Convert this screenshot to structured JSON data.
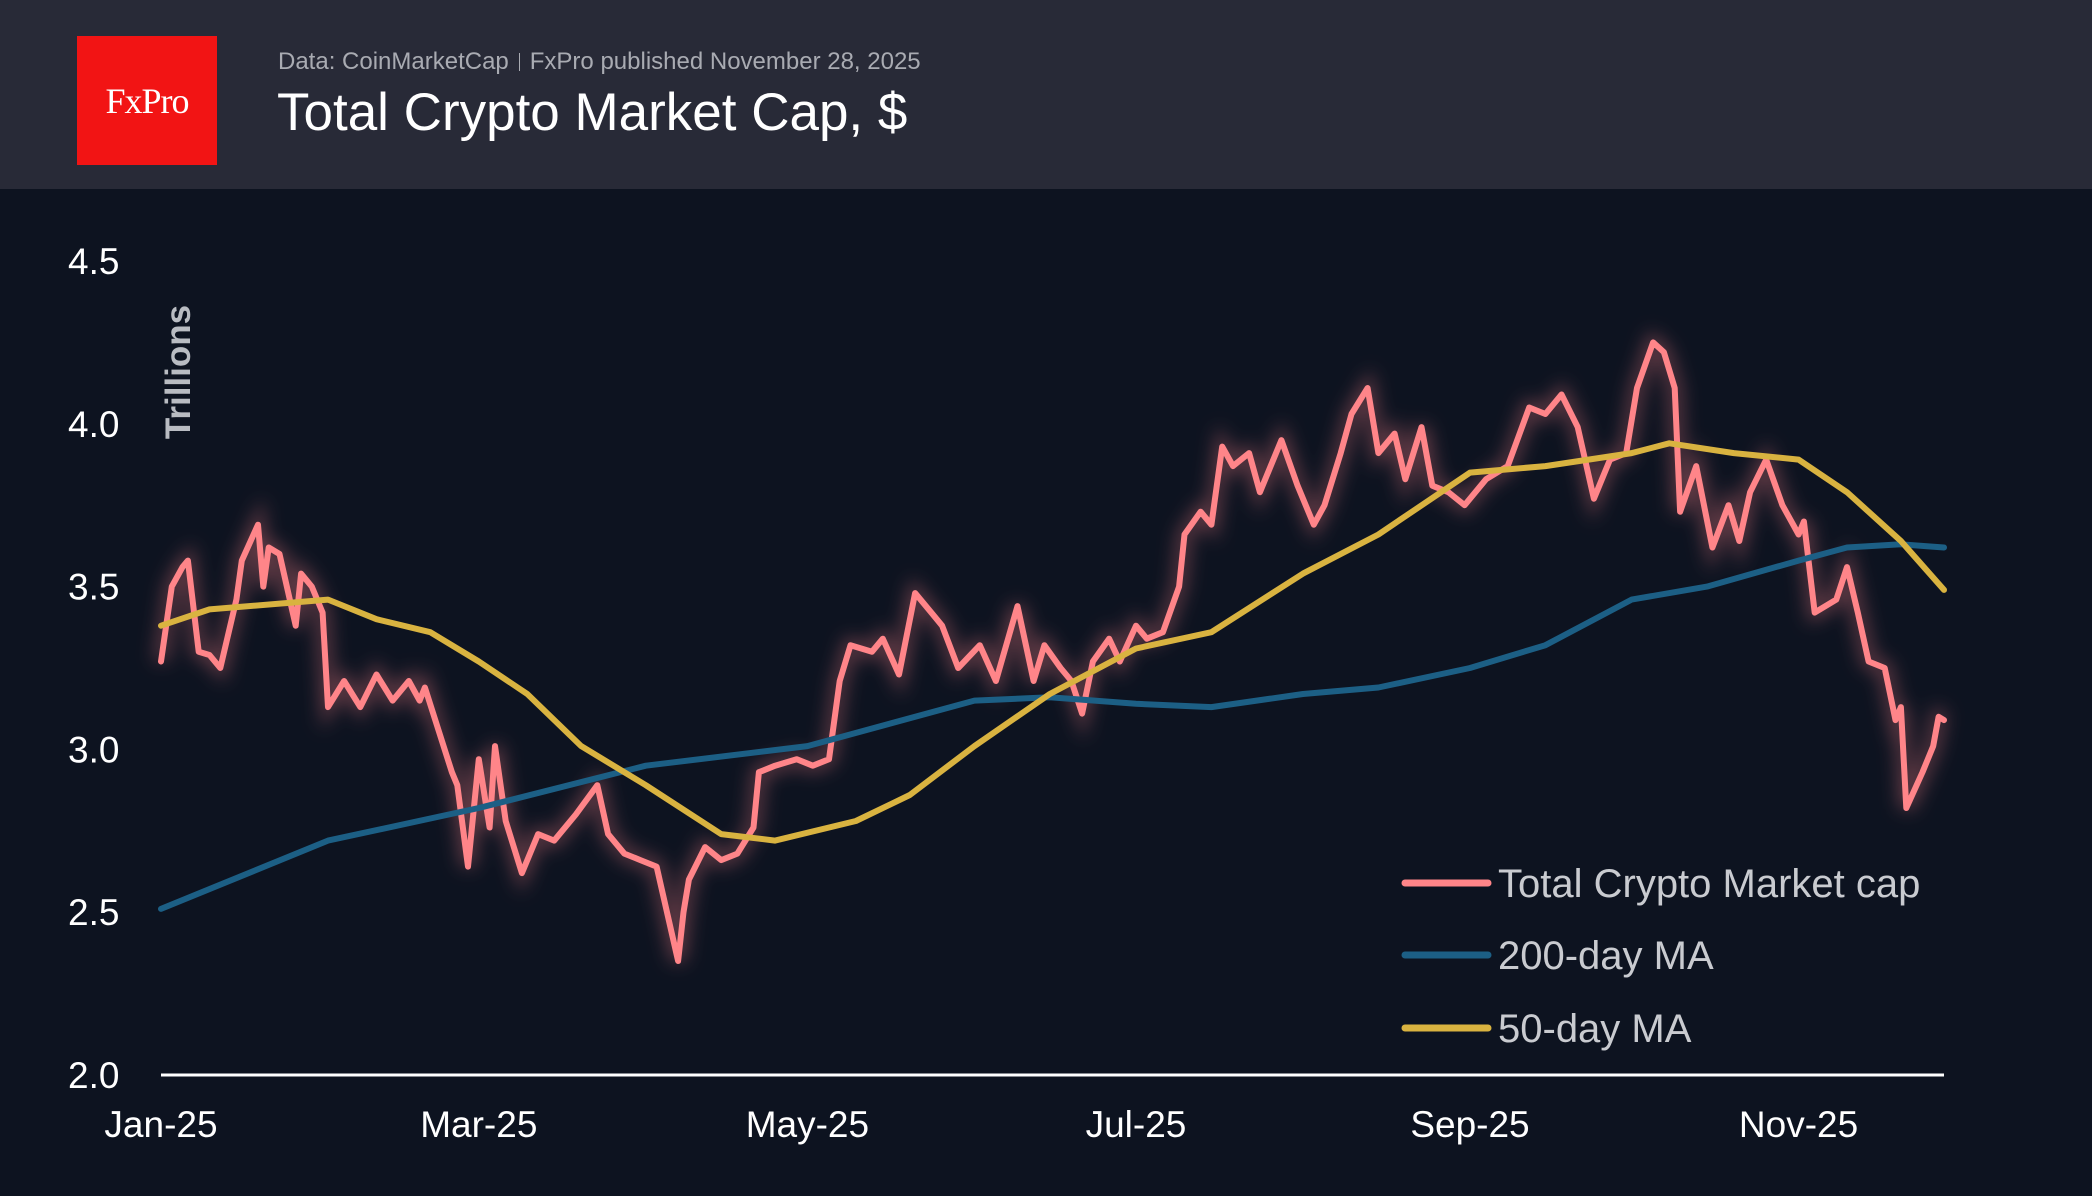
{
  "header": {
    "logo_text": "FxPro",
    "source": "Data: CoinMarketCap",
    "published": "FxPro published November 28, 2025",
    "title": "Total Crypto Market Cap, $"
  },
  "chart_data": {
    "type": "line",
    "title": "Total Crypto Market Cap, $",
    "ylabel": "Trillions",
    "xlabel": "",
    "ylim": [
      2.0,
      4.5
    ],
    "yticks": [
      "2.0",
      "2.5",
      "3.0",
      "3.5",
      "4.0",
      "4.5"
    ],
    "xlim": [
      "2025-01-01",
      "2025-11-28"
    ],
    "xticks": [
      {
        "date": "2025-01-01",
        "label": "Jan-25"
      },
      {
        "date": "2025-03-01",
        "label": "Mar-25"
      },
      {
        "date": "2025-05-01",
        "label": "May-25"
      },
      {
        "date": "2025-07-01",
        "label": "Jul-25"
      },
      {
        "date": "2025-09-01",
        "label": "Sep-25"
      },
      {
        "date": "2025-11-01",
        "label": "Nov-25"
      }
    ],
    "grid": false,
    "legend_position": "bottom-right",
    "series": [
      {
        "name": "Total Crypto Market cap",
        "color": "#ff8589",
        "glow": true,
        "points": [
          [
            "2025-01-01",
            3.27
          ],
          [
            "2025-01-03",
            3.5
          ],
          [
            "2025-01-05",
            3.56
          ],
          [
            "2025-01-06",
            3.58
          ],
          [
            "2025-01-08",
            3.3
          ],
          [
            "2025-01-10",
            3.29
          ],
          [
            "2025-01-12",
            3.25
          ],
          [
            "2025-01-15",
            3.46
          ],
          [
            "2025-01-16",
            3.58
          ],
          [
            "2025-01-19",
            3.69
          ],
          [
            "2025-01-20",
            3.5
          ],
          [
            "2025-01-21",
            3.62
          ],
          [
            "2025-01-23",
            3.6
          ],
          [
            "2025-01-26",
            3.38
          ],
          [
            "2025-01-27",
            3.54
          ],
          [
            "2025-01-29",
            3.5
          ],
          [
            "2025-01-31",
            3.42
          ],
          [
            "2025-02-01",
            3.13
          ],
          [
            "2025-02-04",
            3.21
          ],
          [
            "2025-02-07",
            3.13
          ],
          [
            "2025-02-10",
            3.23
          ],
          [
            "2025-02-13",
            3.15
          ],
          [
            "2025-02-16",
            3.21
          ],
          [
            "2025-02-18",
            3.15
          ],
          [
            "2025-02-19",
            3.19
          ],
          [
            "2025-02-24",
            2.93
          ],
          [
            "2025-02-25",
            2.89
          ],
          [
            "2025-02-27",
            2.64
          ],
          [
            "2025-03-01",
            2.97
          ],
          [
            "2025-03-03",
            2.76
          ],
          [
            "2025-03-04",
            3.01
          ],
          [
            "2025-03-06",
            2.78
          ],
          [
            "2025-03-09",
            2.62
          ],
          [
            "2025-03-12",
            2.74
          ],
          [
            "2025-03-15",
            2.72
          ],
          [
            "2025-03-19",
            2.8
          ],
          [
            "2025-03-23",
            2.89
          ],
          [
            "2025-03-25",
            2.74
          ],
          [
            "2025-03-28",
            2.68
          ],
          [
            "2025-03-31",
            2.66
          ],
          [
            "2025-04-03",
            2.64
          ],
          [
            "2025-04-07",
            2.35
          ],
          [
            "2025-04-08",
            2.5
          ],
          [
            "2025-04-09",
            2.6
          ],
          [
            "2025-04-12",
            2.7
          ],
          [
            "2025-04-15",
            2.66
          ],
          [
            "2025-04-18",
            2.68
          ],
          [
            "2025-04-21",
            2.76
          ],
          [
            "2025-04-22",
            2.93
          ],
          [
            "2025-04-25",
            2.95
          ],
          [
            "2025-04-29",
            2.97
          ],
          [
            "2025-05-02",
            2.95
          ],
          [
            "2025-05-05",
            2.97
          ],
          [
            "2025-05-07",
            3.21
          ],
          [
            "2025-05-09",
            3.32
          ],
          [
            "2025-05-13",
            3.3
          ],
          [
            "2025-05-15",
            3.34
          ],
          [
            "2025-05-18",
            3.23
          ],
          [
            "2025-05-21",
            3.48
          ],
          [
            "2025-05-24",
            3.42
          ],
          [
            "2025-05-26",
            3.38
          ],
          [
            "2025-05-29",
            3.25
          ],
          [
            "2025-06-02",
            3.32
          ],
          [
            "2025-06-05",
            3.21
          ],
          [
            "2025-06-09",
            3.44
          ],
          [
            "2025-06-12",
            3.21
          ],
          [
            "2025-06-14",
            3.32
          ],
          [
            "2025-06-17",
            3.25
          ],
          [
            "2025-06-19",
            3.21
          ],
          [
            "2025-06-21",
            3.11
          ],
          [
            "2025-06-23",
            3.27
          ],
          [
            "2025-06-26",
            3.34
          ],
          [
            "2025-06-28",
            3.27
          ],
          [
            "2025-07-01",
            3.38
          ],
          [
            "2025-07-03",
            3.34
          ],
          [
            "2025-07-06",
            3.36
          ],
          [
            "2025-07-09",
            3.5
          ],
          [
            "2025-07-10",
            3.66
          ],
          [
            "2025-07-13",
            3.73
          ],
          [
            "2025-07-15",
            3.69
          ],
          [
            "2025-07-17",
            3.93
          ],
          [
            "2025-07-19",
            3.87
          ],
          [
            "2025-07-22",
            3.91
          ],
          [
            "2025-07-24",
            3.79
          ],
          [
            "2025-07-28",
            3.95
          ],
          [
            "2025-07-31",
            3.81
          ],
          [
            "2025-08-03",
            3.69
          ],
          [
            "2025-08-05",
            3.75
          ],
          [
            "2025-08-08",
            3.91
          ],
          [
            "2025-08-10",
            4.03
          ],
          [
            "2025-08-13",
            4.11
          ],
          [
            "2025-08-15",
            3.91
          ],
          [
            "2025-08-18",
            3.97
          ],
          [
            "2025-08-20",
            3.83
          ],
          [
            "2025-08-23",
            3.99
          ],
          [
            "2025-08-25",
            3.81
          ],
          [
            "2025-08-28",
            3.79
          ],
          [
            "2025-08-31",
            3.75
          ],
          [
            "2025-09-04",
            3.83
          ],
          [
            "2025-09-08",
            3.87
          ],
          [
            "2025-09-12",
            4.05
          ],
          [
            "2025-09-15",
            4.03
          ],
          [
            "2025-09-18",
            4.09
          ],
          [
            "2025-09-21",
            3.99
          ],
          [
            "2025-09-24",
            3.77
          ],
          [
            "2025-09-27",
            3.89
          ],
          [
            "2025-09-30",
            3.91
          ],
          [
            "2025-10-02",
            4.11
          ],
          [
            "2025-10-05",
            4.25
          ],
          [
            "2025-10-07",
            4.22
          ],
          [
            "2025-10-09",
            4.11
          ],
          [
            "2025-10-10",
            3.73
          ],
          [
            "2025-10-13",
            3.87
          ],
          [
            "2025-10-16",
            3.62
          ],
          [
            "2025-10-19",
            3.75
          ],
          [
            "2025-10-21",
            3.64
          ],
          [
            "2025-10-23",
            3.79
          ],
          [
            "2025-10-26",
            3.89
          ],
          [
            "2025-10-29",
            3.75
          ],
          [
            "2025-11-01",
            3.66
          ],
          [
            "2025-11-02",
            3.7
          ],
          [
            "2025-11-04",
            3.42
          ],
          [
            "2025-11-06",
            3.44
          ],
          [
            "2025-11-08",
            3.46
          ],
          [
            "2025-11-10",
            3.56
          ],
          [
            "2025-11-12",
            3.42
          ],
          [
            "2025-11-14",
            3.27
          ],
          [
            "2025-11-17",
            3.25
          ],
          [
            "2025-11-19",
            3.09
          ],
          [
            "2025-11-20",
            3.13
          ],
          [
            "2025-11-21",
            2.82
          ],
          [
            "2025-11-24",
            2.93
          ],
          [
            "2025-11-26",
            3.01
          ],
          [
            "2025-11-27",
            3.1
          ],
          [
            "2025-11-28",
            3.09
          ]
        ]
      },
      {
        "name": "200-day MA",
        "color": "#1c5f85",
        "points": [
          [
            "2025-01-01",
            2.51
          ],
          [
            "2025-02-01",
            2.72
          ],
          [
            "2025-03-01",
            2.82
          ],
          [
            "2025-04-01",
            2.95
          ],
          [
            "2025-05-01",
            3.01
          ],
          [
            "2025-06-01",
            3.15
          ],
          [
            "2025-06-15",
            3.16
          ],
          [
            "2025-07-01",
            3.14
          ],
          [
            "2025-07-15",
            3.13
          ],
          [
            "2025-08-01",
            3.17
          ],
          [
            "2025-08-15",
            3.19
          ],
          [
            "2025-09-01",
            3.25
          ],
          [
            "2025-09-15",
            3.32
          ],
          [
            "2025-10-01",
            3.46
          ],
          [
            "2025-10-15",
            3.5
          ],
          [
            "2025-11-01",
            3.58
          ],
          [
            "2025-11-10",
            3.62
          ],
          [
            "2025-11-20",
            3.63
          ],
          [
            "2025-11-28",
            3.62
          ]
        ]
      },
      {
        "name": "50-day MA",
        "color": "#d9b340",
        "points": [
          [
            "2025-01-01",
            3.38
          ],
          [
            "2025-01-10",
            3.43
          ],
          [
            "2025-02-01",
            3.46
          ],
          [
            "2025-02-10",
            3.4
          ],
          [
            "2025-02-20",
            3.36
          ],
          [
            "2025-03-01",
            3.27
          ],
          [
            "2025-03-10",
            3.17
          ],
          [
            "2025-03-20",
            3.01
          ],
          [
            "2025-04-01",
            2.89
          ],
          [
            "2025-04-15",
            2.74
          ],
          [
            "2025-04-25",
            2.72
          ],
          [
            "2025-05-10",
            2.78
          ],
          [
            "2025-05-20",
            2.86
          ],
          [
            "2025-06-01",
            3.01
          ],
          [
            "2025-06-15",
            3.17
          ],
          [
            "2025-07-01",
            3.31
          ],
          [
            "2025-07-15",
            3.36
          ],
          [
            "2025-08-01",
            3.54
          ],
          [
            "2025-08-15",
            3.66
          ],
          [
            "2025-09-01",
            3.85
          ],
          [
            "2025-09-15",
            3.87
          ],
          [
            "2025-10-01",
            3.91
          ],
          [
            "2025-10-08",
            3.94
          ],
          [
            "2025-10-20",
            3.91
          ],
          [
            "2025-11-01",
            3.89
          ],
          [
            "2025-11-10",
            3.79
          ],
          [
            "2025-11-20",
            3.64
          ],
          [
            "2025-11-28",
            3.49
          ]
        ]
      }
    ]
  }
}
